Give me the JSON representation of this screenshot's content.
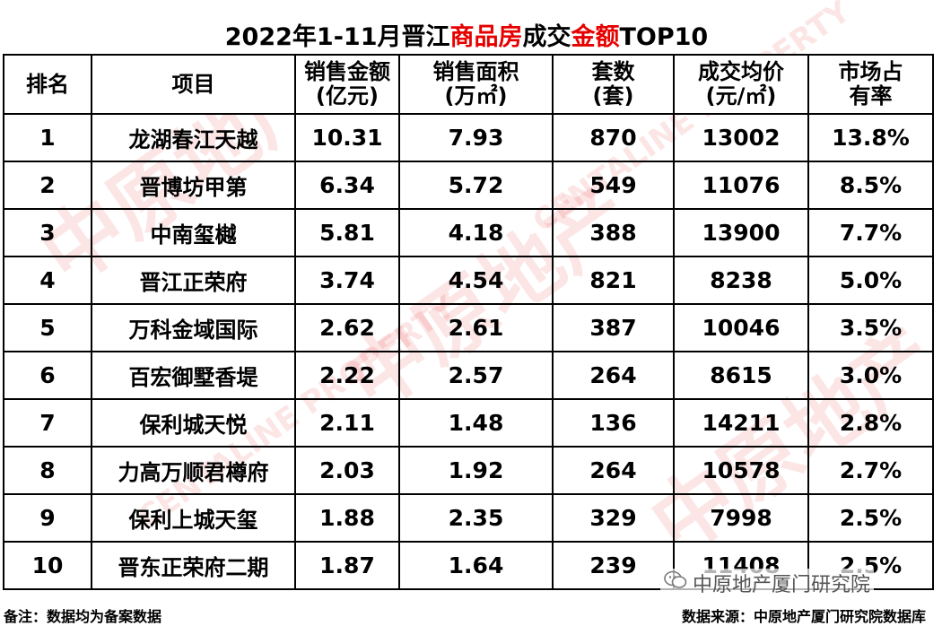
{
  "title": {
    "part1": "2022年1-11月晋江",
    "part2": "商品房",
    "part3": "成交",
    "part4": "金额",
    "part5": "TOP10"
  },
  "table": {
    "headers": [
      {
        "line1": "排名",
        "line2": ""
      },
      {
        "line1": "项目",
        "line2": ""
      },
      {
        "line1": "销售金额",
        "line2": "(亿元)"
      },
      {
        "line1": "销售面积",
        "line2": "(万㎡)"
      },
      {
        "line1": "套数",
        "line2": "(套)"
      },
      {
        "line1": "成交均价",
        "line2": "(元/㎡)"
      },
      {
        "line1": "市场占",
        "line2": "有率"
      }
    ],
    "rows": [
      {
        "rank": "1",
        "project": "龙湖春江天越",
        "amount": "10.31",
        "area": "7.93",
        "units": "870",
        "price": "13002",
        "share": "13.8%"
      },
      {
        "rank": "2",
        "project": "晋博坊甲第",
        "amount": "6.34",
        "area": "5.72",
        "units": "549",
        "price": "11076",
        "share": "8.5%"
      },
      {
        "rank": "3",
        "project": "中南玺樾",
        "amount": "5.81",
        "area": "4.18",
        "units": "388",
        "price": "13900",
        "share": "7.7%"
      },
      {
        "rank": "4",
        "project": "晋江正荣府",
        "amount": "3.74",
        "area": "4.54",
        "units": "821",
        "price": "8238",
        "share": "5.0%"
      },
      {
        "rank": "5",
        "project": "万科金域国际",
        "amount": "2.62",
        "area": "2.61",
        "units": "387",
        "price": "10046",
        "share": "3.5%"
      },
      {
        "rank": "6",
        "project": "百宏御墅香堤",
        "amount": "2.22",
        "area": "2.57",
        "units": "264",
        "price": "8615",
        "share": "3.0%"
      },
      {
        "rank": "7",
        "project": "保利城天悦",
        "amount": "2.11",
        "area": "1.48",
        "units": "136",
        "price": "14211",
        "share": "2.8%"
      },
      {
        "rank": "8",
        "project": "力高万顺君樽府",
        "amount": "2.03",
        "area": "1.92",
        "units": "264",
        "price": "10578",
        "share": "2.7%"
      },
      {
        "rank": "9",
        "project": "保利上城天玺",
        "amount": "1.88",
        "area": "2.35",
        "units": "329",
        "price": "7998",
        "share": "2.5%"
      },
      {
        "rank": "10",
        "project": "晋东正荣府二期",
        "amount": "1.87",
        "area": "1.64",
        "units": "239",
        "price": "11408",
        "share": "2.5%"
      }
    ]
  },
  "footer": {
    "note": "备注：数据均为备案数据",
    "source": "数据来源：中原地产厦门研究院数据库"
  },
  "badge": {
    "text": "中原地产厦门研究院",
    "icon": "wechat-icon"
  },
  "watermark": {
    "cn": "中原地产",
    "en": "CENTALINE PROPERTY"
  },
  "colors": {
    "accent": "#e60000",
    "text": "#000000"
  }
}
